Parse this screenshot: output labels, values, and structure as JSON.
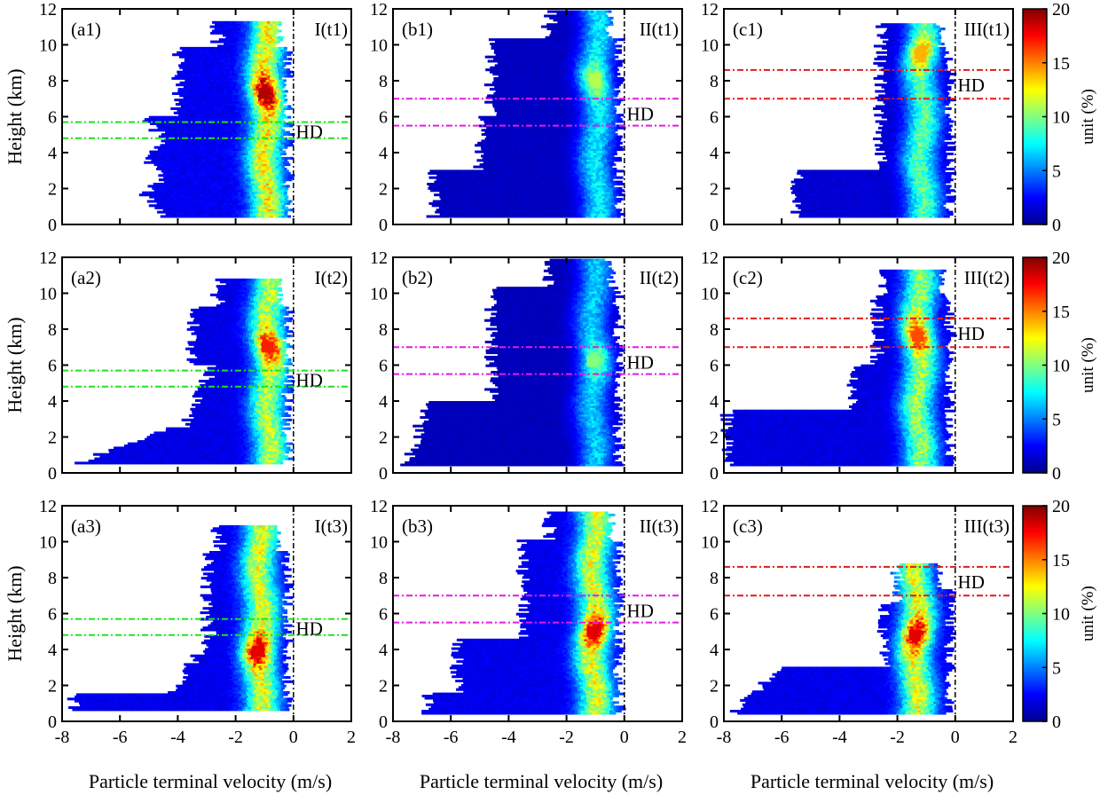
{
  "figure": {
    "common_xlabel": "Particle terminal velocity (m/s)",
    "common_ylabel": "Height (km)",
    "colorbar": {
      "label": "unit (%)",
      "range": [
        0,
        20
      ],
      "ticks": [
        "0",
        "5",
        "10",
        "15",
        "20"
      ],
      "colormap": "jet"
    },
    "hd_label": "HD",
    "line_colors": {
      "a": "#19e619",
      "b": "#e619e6",
      "c": "#e61919"
    }
  },
  "chart_data": [
    {
      "id": "a1",
      "type": "heatmap",
      "panel_label": "(a1)",
      "stage_label": "I(t1)",
      "xlim": [
        -8,
        2
      ],
      "ylim": [
        0,
        12
      ],
      "xticks": [
        -8,
        -6,
        -4,
        -2,
        0,
        2
      ],
      "yticks": [
        0,
        2,
        4,
        6,
        8,
        10,
        12
      ],
      "hd_band": [
        4.8,
        5.7
      ],
      "hd_label_y": 5.2,
      "hd_color": "#19e619",
      "echo_top": 11.3,
      "echo_bottom": 0.4,
      "peak": {
        "x": -1.0,
        "y": 7.3,
        "value": 19
      },
      "max_value": 19
    },
    {
      "id": "b1",
      "type": "heatmap",
      "panel_label": "(b1)",
      "stage_label": "II(t1)",
      "xlim": [
        -8,
        2
      ],
      "ylim": [
        0,
        12
      ],
      "xticks": [
        -8,
        -6,
        -4,
        -2,
        0,
        2
      ],
      "yticks": [
        0,
        2,
        4,
        6,
        8,
        10,
        12
      ],
      "hd_band": [
        5.5,
        7.0
      ],
      "hd_label_y": 6.2,
      "hd_color": "#e619e6",
      "echo_top": 11.8,
      "echo_bottom": 0.4,
      "peak": {
        "x": -1.0,
        "y": 8.0,
        "value": 11
      },
      "max_value": 11
    },
    {
      "id": "c1",
      "type": "heatmap",
      "panel_label": "(c1)",
      "stage_label": "III(t1)",
      "xlim": [
        -8,
        2
      ],
      "ylim": [
        0,
        12
      ],
      "xticks": [
        -8,
        -6,
        -4,
        -2,
        0,
        2
      ],
      "yticks": [
        0,
        2,
        4,
        6,
        8,
        10,
        12
      ],
      "hd_band": [
        7.0,
        8.6
      ],
      "hd_label_y": 7.8,
      "hd_color": "#e61919",
      "echo_top": 11.1,
      "echo_bottom": 0.4,
      "peak": {
        "x": -1.2,
        "y": 9.5,
        "value": 14
      },
      "max_value": 14
    },
    {
      "id": "a2",
      "type": "heatmap",
      "panel_label": "(a2)",
      "stage_label": "I(t2)",
      "xlim": [
        -8,
        2
      ],
      "ylim": [
        0,
        12
      ],
      "xticks": [
        -8,
        -6,
        -4,
        -2,
        0,
        2
      ],
      "yticks": [
        0,
        2,
        4,
        6,
        8,
        10,
        12
      ],
      "hd_band": [
        4.8,
        5.7
      ],
      "hd_label_y": 5.2,
      "hd_color": "#19e619",
      "echo_top": 10.7,
      "echo_bottom": 0.5,
      "peak": {
        "x": -0.9,
        "y": 7.0,
        "value": 17
      },
      "max_value": 17
    },
    {
      "id": "b2",
      "type": "heatmap",
      "panel_label": "(b2)",
      "stage_label": "II(t2)",
      "xlim": [
        -8,
        2
      ],
      "ylim": [
        0,
        12
      ],
      "xticks": [
        -8,
        -6,
        -4,
        -2,
        0,
        2
      ],
      "yticks": [
        0,
        2,
        4,
        6,
        8,
        10,
        12
      ],
      "hd_band": [
        5.5,
        7.0
      ],
      "hd_label_y": 6.2,
      "hd_color": "#e619e6",
      "echo_top": 11.8,
      "echo_bottom": 0.4,
      "peak": {
        "x": -1.1,
        "y": 6.2,
        "value": 10
      },
      "max_value": 10
    },
    {
      "id": "c2",
      "type": "heatmap",
      "panel_label": "(c2)",
      "stage_label": "III(t2)",
      "xlim": [
        -8,
        2
      ],
      "ylim": [
        0,
        12
      ],
      "xticks": [
        -8,
        -6,
        -4,
        -2,
        0,
        2
      ],
      "yticks": [
        0,
        2,
        4,
        6,
        8,
        10,
        12
      ],
      "hd_band": [
        7.0,
        8.6
      ],
      "hd_label_y": 7.8,
      "hd_color": "#e61919",
      "echo_top": 11.3,
      "echo_bottom": 0.4,
      "peak": {
        "x": -1.3,
        "y": 7.6,
        "value": 16
      },
      "max_value": 16
    },
    {
      "id": "a3",
      "type": "heatmap",
      "panel_label": "(a3)",
      "stage_label": "I(t3)",
      "xlim": [
        -8,
        2
      ],
      "ylim": [
        0,
        12
      ],
      "xticks": [
        -8,
        -6,
        -4,
        -2,
        0,
        2
      ],
      "yticks": [
        0,
        2,
        4,
        6,
        8,
        10,
        12
      ],
      "hd_band": [
        4.8,
        5.7
      ],
      "hd_label_y": 5.2,
      "hd_color": "#19e619",
      "echo_top": 10.9,
      "echo_bottom": 0.6,
      "peak": {
        "x": -1.2,
        "y": 3.9,
        "value": 18
      },
      "max_value": 18
    },
    {
      "id": "b3",
      "type": "heatmap",
      "panel_label": "(b3)",
      "stage_label": "II(t3)",
      "xlim": [
        -8,
        2
      ],
      "ylim": [
        0,
        12
      ],
      "xticks": [
        -8,
        -6,
        -4,
        -2,
        0,
        2
      ],
      "yticks": [
        0,
        2,
        4,
        6,
        8,
        10,
        12
      ],
      "hd_band": [
        5.5,
        7.0
      ],
      "hd_label_y": 6.2,
      "hd_color": "#e619e6",
      "echo_top": 11.6,
      "echo_bottom": 0.4,
      "peak": {
        "x": -1.1,
        "y": 5.0,
        "value": 18
      },
      "max_value": 18
    },
    {
      "id": "c3",
      "type": "heatmap",
      "panel_label": "(c3)",
      "stage_label": "III(t3)",
      "xlim": [
        -8,
        2
      ],
      "ylim": [
        0,
        12
      ],
      "xticks": [
        -8,
        -6,
        -4,
        -2,
        0,
        2
      ],
      "yticks": [
        0,
        2,
        4,
        6,
        8,
        10,
        12
      ],
      "hd_band": [
        7.0,
        8.6
      ],
      "hd_label_y": 7.8,
      "hd_color": "#e61919",
      "echo_top": 8.8,
      "echo_bottom": 0.4,
      "peak": {
        "x": -1.4,
        "y": 4.8,
        "value": 18
      },
      "max_value": 18
    }
  ]
}
